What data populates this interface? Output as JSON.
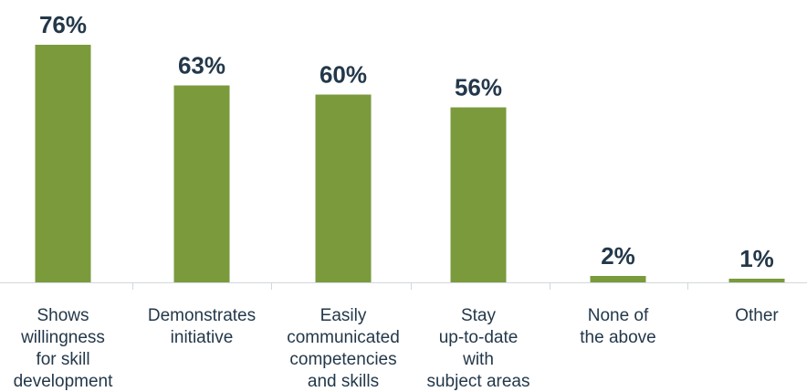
{
  "chart_data": {
    "type": "bar",
    "categories": [
      "Shows willingness for skill development",
      "Demonstrates initiative",
      "Easily communicated competencies and skills",
      "Stay up-to-date with subject areas",
      "None of the above",
      "Other"
    ],
    "category_lines": [
      [
        "Shows",
        "willingness",
        "for skill",
        "development"
      ],
      [
        "Demonstrates",
        "initiative"
      ],
      [
        "Easily",
        "communicated",
        "competencies",
        "and skills"
      ],
      [
        "Stay",
        "up-to-date",
        "with",
        "subject areas"
      ],
      [
        "None of",
        "the above"
      ],
      [
        "Other"
      ]
    ],
    "values": [
      76,
      63,
      60,
      56,
      2,
      1
    ],
    "value_labels": [
      "76%",
      "63%",
      "60%",
      "56%",
      "2%",
      "1%"
    ],
    "unit": "%",
    "ylim": [
      0,
      76
    ],
    "title": "",
    "xlabel": "",
    "ylabel": "",
    "grid": false,
    "legend": "none",
    "colors": {
      "bar": "#7a9a3c",
      "text": "#23384a",
      "axis": "#cfd8dc"
    }
  }
}
